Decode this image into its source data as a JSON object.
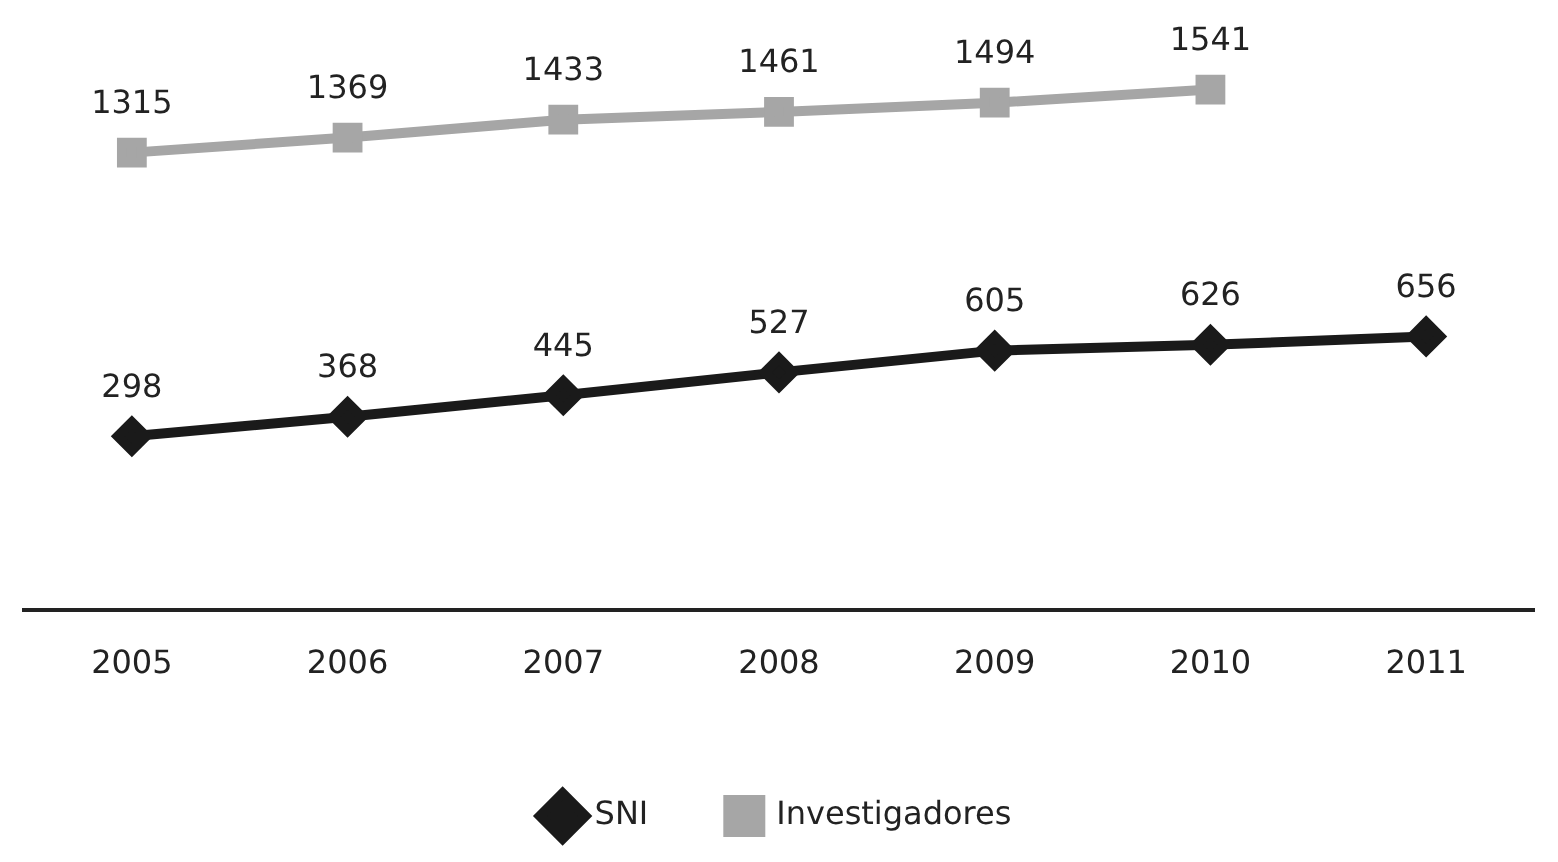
{
  "chart_data": {
    "type": "line",
    "categories": [
      "2005",
      "2006",
      "2007",
      "2008",
      "2009",
      "2010",
      "2011"
    ],
    "series": [
      {
        "name": "SNI",
        "color": "#1a1a1a",
        "marker": "diamond",
        "values": [
          298,
          368,
          445,
          527,
          605,
          626,
          656
        ]
      },
      {
        "name": "Investigadores",
        "color": "#a6a6a6",
        "marker": "square",
        "values": [
          1315,
          1369,
          1433,
          1461,
          1494,
          1541,
          null
        ]
      }
    ],
    "data_labels": true,
    "legend": "bottom",
    "grid": false
  }
}
